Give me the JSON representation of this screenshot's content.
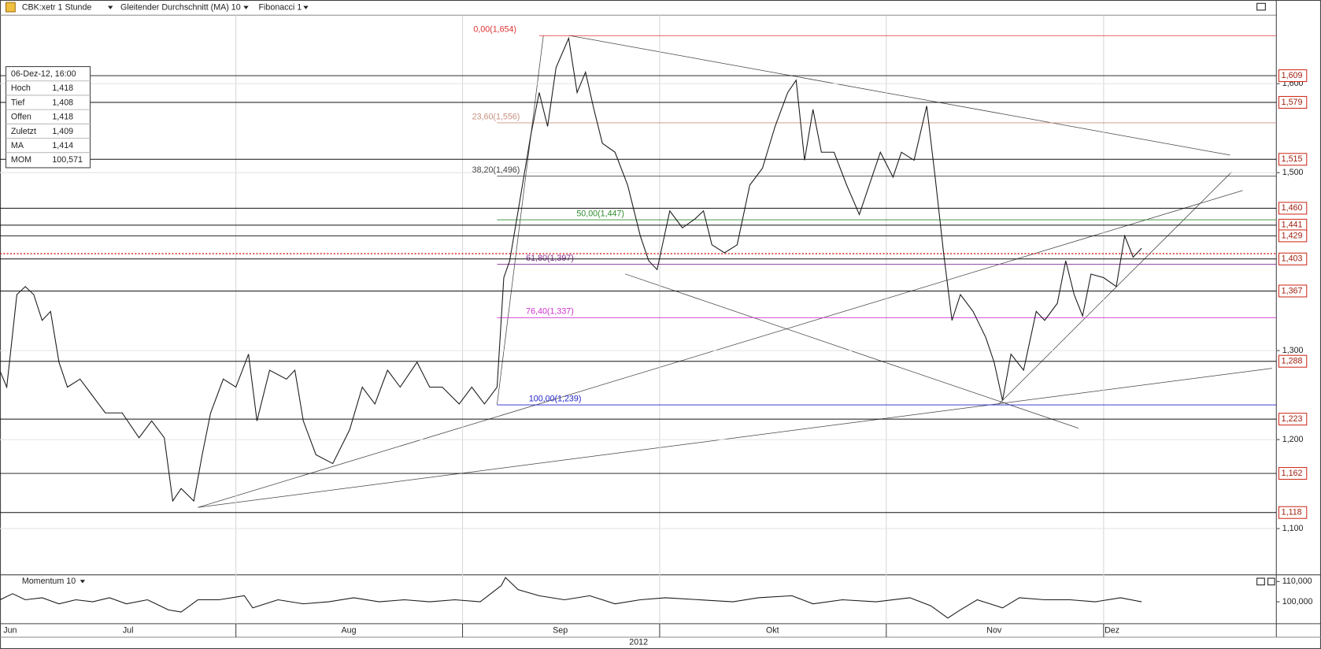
{
  "header": {
    "symbol": "CBK:xetr 1 Stunde",
    "indicator": "Gleitender Durchschnitt (MA) 10",
    "drawing": "Fibonacci 1"
  },
  "infobox": {
    "date": "06-Dez-12, 16:00",
    "rows": [
      [
        "Hoch",
        "1,418"
      ],
      [
        "Tief",
        "1,408"
      ],
      [
        "Offen",
        "1,418"
      ],
      [
        "Zuletzt",
        "1,409"
      ],
      [
        "MA",
        "1,414"
      ],
      [
        "MOM",
        "100,571"
      ]
    ]
  },
  "chart_data": [
    {
      "type": "line",
      "x": [
        0,
        8,
        20,
        30,
        40,
        50,
        60,
        70,
        80,
        95,
        110,
        125,
        145,
        165,
        180,
        195,
        205,
        215,
        230,
        240,
        250,
        265,
        280,
        295,
        305,
        320,
        340,
        350,
        360,
        375,
        395,
        415,
        430,
        445,
        460,
        475,
        495,
        510,
        525,
        545,
        560,
        575,
        590,
        598,
        605,
        615,
        630,
        640,
        650,
        660,
        675,
        685,
        695,
        705,
        715,
        730,
        745,
        760,
        770,
        780,
        795,
        810,
        825,
        835,
        845,
        860,
        875,
        890,
        905,
        920,
        935,
        945,
        955,
        965,
        975,
        990,
        1005,
        1020,
        1035,
        1045,
        1060,
        1070,
        1085,
        1100,
        1110,
        1120,
        1130,
        1140,
        1155,
        1170,
        1180,
        1190,
        1200,
        1215,
        1230,
        1240,
        1255,
        1265,
        1275,
        1285,
        1295,
        1310,
        1325,
        1335,
        1345,
        1355
      ],
      "series": [
        {
          "color": "#1a1a1a",
          "values": [
            1.277,
            1.259,
            1.363,
            1.372,
            1.363,
            1.334,
            1.344,
            1.287,
            1.259,
            1.268,
            1.249,
            1.23,
            1.23,
            1.202,
            1.221,
            1.202,
            1.131,
            1.145,
            1.131,
            1.183,
            1.23,
            1.268,
            1.259,
            1.296,
            1.221,
            1.278,
            1.268,
            1.278,
            1.221,
            1.183,
            1.173,
            1.211,
            1.259,
            1.24,
            1.278,
            1.259,
            1.287,
            1.259,
            1.259,
            1.24,
            1.259,
            1.24,
            1.259,
            1.382,
            1.401,
            1.457,
            1.542,
            1.59,
            1.552,
            1.618,
            1.651,
            1.59,
            1.613,
            1.571,
            1.533,
            1.523,
            1.486,
            1.429,
            1.401,
            1.391,
            1.457,
            1.438,
            1.448,
            1.457,
            1.419,
            1.41,
            1.419,
            1.486,
            1.505,
            1.552,
            1.59,
            1.604,
            1.514,
            1.571,
            1.523,
            1.523,
            1.486,
            1.453,
            1.495,
            1.523,
            1.495,
            1.523,
            1.514,
            1.575,
            1.495,
            1.41,
            1.334,
            1.363,
            1.344,
            1.315,
            1.287,
            1.244,
            1.296,
            1.278,
            1.344,
            1.334,
            1.353,
            1.401,
            1.363,
            1.339,
            1.386,
            1.382,
            1.372,
            1.429,
            1.405,
            1.415
          ]
        }
      ],
      "xlim": [
        0,
        1515
      ],
      "xticks": [
        {
          "value": 12,
          "label": "Jun"
        },
        {
          "value": 152,
          "label": "Jul"
        },
        {
          "value": 414,
          "label": "Aug"
        },
        {
          "value": 665,
          "label": "Sep"
        },
        {
          "value": 917,
          "label": "Okt"
        },
        {
          "value": 1180,
          "label": "Nov"
        },
        {
          "value": 1320,
          "label": "Dez"
        }
      ],
      "xgrid": [
        280,
        549,
        783,
        1052,
        1310
      ],
      "year": "2012",
      "ylim": [
        1.048,
        1.677
      ],
      "yticks": [
        {
          "value": 1.6,
          "label": "1,600"
        },
        {
          "value": 1.5,
          "label": "1,500"
        },
        {
          "value": 1.3,
          "label": "1,300"
        },
        {
          "value": 1.2,
          "label": "1,200"
        },
        {
          "value": 1.1,
          "label": "1,100"
        }
      ],
      "levels": [
        {
          "value": 1.609,
          "label": "1,609"
        },
        {
          "value": 1.579,
          "label": "1,579"
        },
        {
          "value": 1.515,
          "label": "1,515"
        },
        {
          "value": 1.46,
          "label": "1,460"
        },
        {
          "value": 1.441,
          "label": "1,441"
        },
        {
          "value": 1.429,
          "label": "1,429"
        },
        {
          "value": 1.403,
          "label": "1,403"
        },
        {
          "value": 1.367,
          "label": "1,367"
        },
        {
          "value": 1.288,
          "label": "1,288"
        },
        {
          "value": 1.223,
          "label": "1,223"
        },
        {
          "value": 1.162,
          "label": "1,162"
        },
        {
          "value": 1.118,
          "label": "1,118"
        }
      ],
      "fibonacci": [
        {
          "value": 1.654,
          "label": "0,00(1,654)",
          "color": "#e03030"
        },
        {
          "value": 1.556,
          "label": "23,60(1,556)",
          "color": "#c89080"
        },
        {
          "value": 1.496,
          "label": "38,20(1,496)",
          "color": "#444444"
        },
        {
          "value": 1.447,
          "label": "50,00(1,447)",
          "color": "#2e8b2e"
        },
        {
          "value": 1.397,
          "label": "61,80(1,397)",
          "color": "#883399"
        },
        {
          "value": 1.337,
          "label": "76,40(1,337)",
          "color": "#d030d0"
        },
        {
          "value": 1.239,
          "label": "100,00(1,239)",
          "color": "#2222cc"
        }
      ],
      "last_price": 1.409,
      "grid": true
    },
    {
      "type": "line",
      "title": "Momentum 10",
      "x": [
        0,
        15,
        30,
        50,
        70,
        90,
        110,
        130,
        150,
        175,
        200,
        215,
        235,
        260,
        290,
        300,
        330,
        360,
        390,
        420,
        450,
        480,
        510,
        540,
        570,
        595,
        600,
        615,
        640,
        670,
        700,
        730,
        760,
        790,
        830,
        870,
        900,
        940,
        965,
        1000,
        1040,
        1080,
        1105,
        1125,
        1140,
        1160,
        1190,
        1210,
        1240,
        1270,
        1300,
        1330,
        1355
      ],
      "series": [
        {
          "color": "#1a1a1a",
          "values": [
            101,
            104,
            101,
            102,
            99,
            101,
            100,
            102,
            99,
            101,
            96,
            95,
            101,
            101,
            103,
            97,
            101,
            99,
            100,
            102,
            100,
            101,
            100,
            101,
            100,
            108,
            112,
            106,
            103,
            101,
            103,
            99,
            101,
            102,
            101,
            100,
            102,
            103,
            99,
            101,
            100,
            102,
            98,
            92,
            96,
            101,
            97,
            102,
            101,
            101,
            100,
            102,
            100
          ]
        }
      ],
      "xlim": [
        0,
        1515
      ],
      "ylim": [
        89.2,
        112.9
      ],
      "yticks": [
        {
          "value": 110,
          "label": "110,000"
        },
        {
          "value": 100,
          "label": "100,000"
        }
      ]
    }
  ]
}
